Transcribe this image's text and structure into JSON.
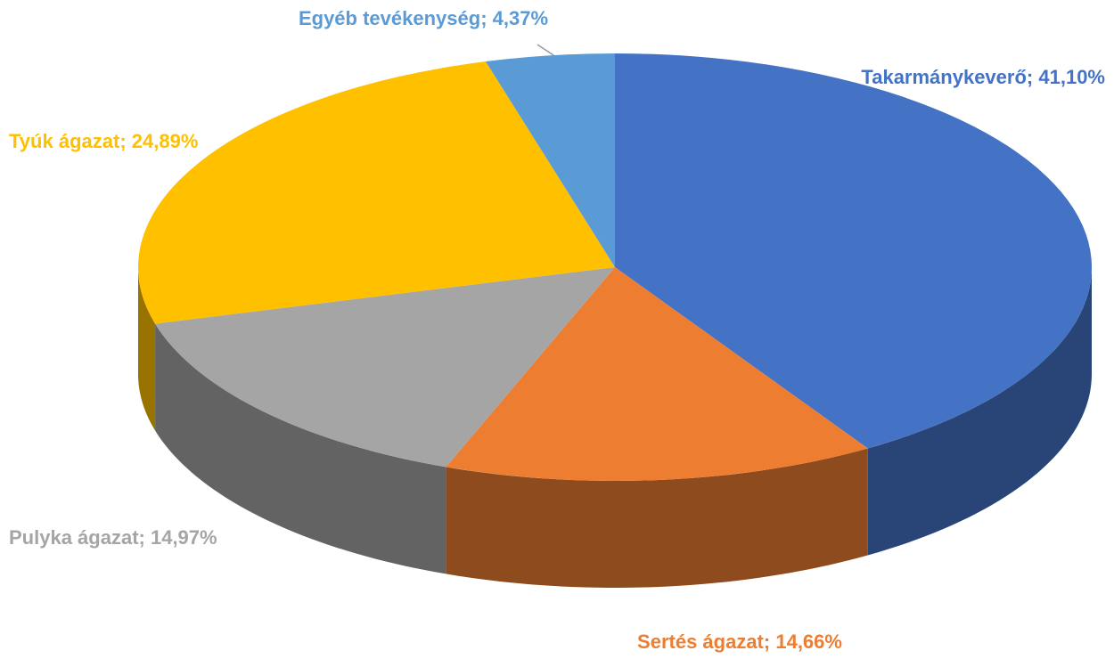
{
  "chart_data": {
    "type": "pie",
    "categories": [
      "Takarmánykeverő",
      "Sertés ágazat",
      "Pulyka ágazat",
      "Tyúk ágazat",
      "Egyéb tevékenység"
    ],
    "values": [
      41.1,
      14.66,
      14.97,
      24.89,
      4.37
    ],
    "value_labels": [
      "41,10%",
      "14,66%",
      "14,97%",
      "24,89%",
      "4,37%"
    ],
    "label_separator": "; ",
    "colors": [
      "#4472c4",
      "#ed7d31",
      "#a5a5a5",
      "#ffc000",
      "#5b9bd5"
    ]
  }
}
